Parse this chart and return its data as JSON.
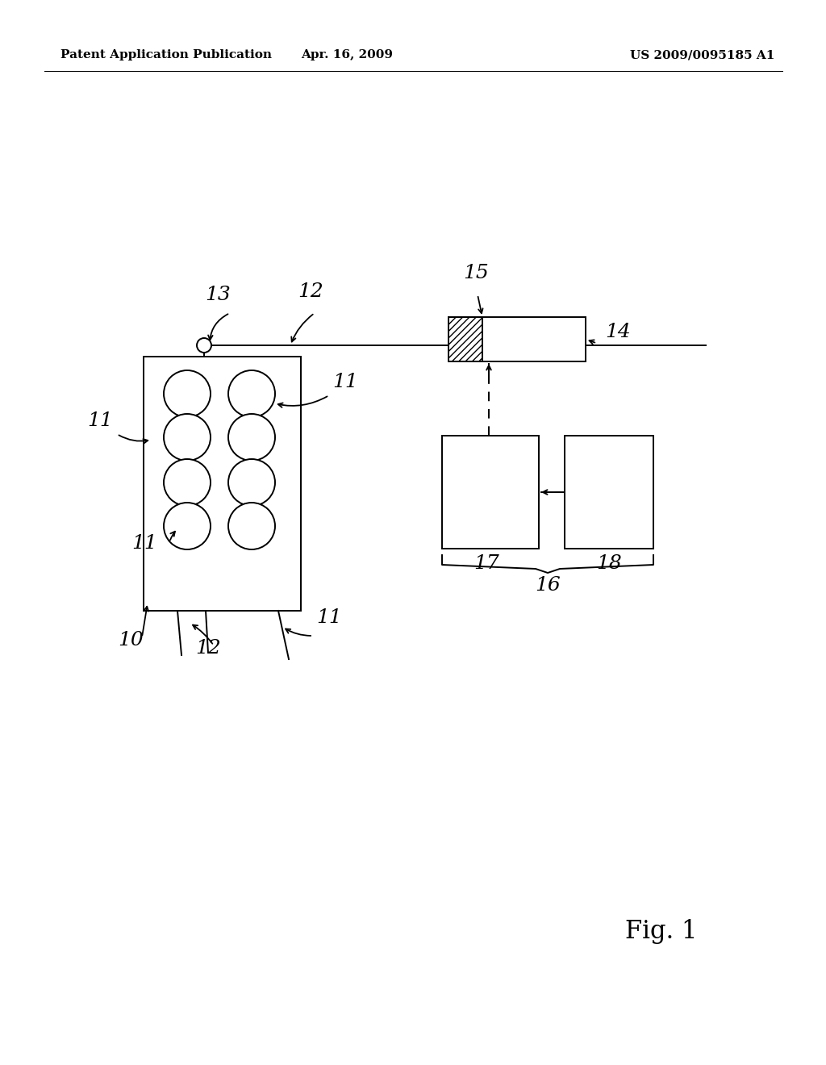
{
  "bg_color": "#ffffff",
  "header_left": "Patent Application Publication",
  "header_center": "Apr. 16, 2009",
  "header_right": "US 2009/0095185 A1",
  "fig_label": "Fig. 1",
  "header_fontsize": 11
}
